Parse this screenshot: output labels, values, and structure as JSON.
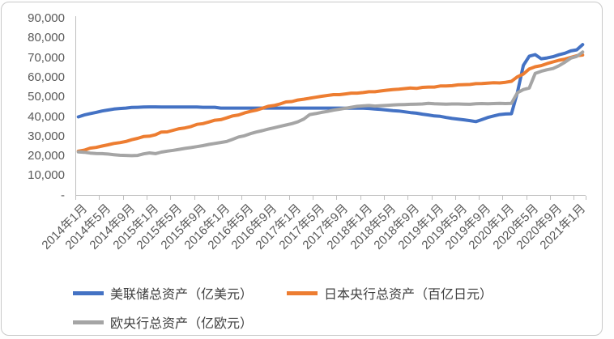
{
  "chart_data": {
    "type": "line",
    "title": "",
    "xlabel": "",
    "ylabel": "",
    "ylim": [
      0,
      90000
    ],
    "y_tick_step": 10000,
    "grid": false,
    "legend_position": "bottom",
    "x_unit": "month",
    "x_range_note": "monthly points from 2014-01 to 2021-02, x tick labels every 4 months",
    "y_tick_labels_top_to_bottom": [
      "90,000",
      "80,000",
      "70,000",
      "60,000",
      "50,000",
      "40,000",
      "30,000",
      "20,000",
      "10,000",
      "-"
    ],
    "x_tick_labels": [
      "2014年1月",
      "2014年5月",
      "2014年9月",
      "2015年1月",
      "2015年5月",
      "2015年9月",
      "2016年1月",
      "2016年5月",
      "2016年9月",
      "2017年1月",
      "2017年5月",
      "2017年9月",
      "2018年1月",
      "2018年5月",
      "2018年9月",
      "2019年1月",
      "2019年5月",
      "2019年9月",
      "2020年1月",
      "2020年5月",
      "2020年9月",
      "2021年1月"
    ],
    "series": [
      {
        "id": "fed",
        "name": "美联储总资产（亿美元）",
        "color": "#4472c4",
        "values": [
          40000,
          41000,
          41700,
          42300,
          43000,
          43500,
          44000,
          44300,
          44500,
          44800,
          44900,
          45000,
          45100,
          45100,
          45000,
          45000,
          45000,
          45000,
          45000,
          45000,
          45000,
          44900,
          44900,
          44900,
          44500,
          44500,
          44500,
          44500,
          44500,
          44500,
          44500,
          44500,
          44500,
          44500,
          44500,
          44500,
          44500,
          44500,
          44500,
          44500,
          44500,
          44500,
          44500,
          44500,
          44500,
          44400,
          44400,
          44400,
          44400,
          44300,
          44000,
          43800,
          43500,
          43200,
          43000,
          42600,
          42200,
          41900,
          41400,
          41000,
          40500,
          40300,
          39700,
          39200,
          38900,
          38500,
          38100,
          37600,
          38600,
          39700,
          40500,
          41200,
          41500,
          41600,
          52500,
          66200,
          70900,
          71700,
          69600,
          70000,
          70600,
          71600,
          72400,
          73600,
          74100,
          76800
        ]
      },
      {
        "id": "boj",
        "name": "日本央行总资产（百亿日元）",
        "color": "#ed7d31",
        "values": [
          22600,
          23100,
          24100,
          24500,
          25200,
          25800,
          26500,
          26900,
          27500,
          28400,
          29100,
          30000,
          30200,
          30900,
          32300,
          32400,
          33200,
          34000,
          34400,
          35100,
          36200,
          36600,
          37400,
          38300,
          38600,
          39500,
          40500,
          41000,
          42000,
          42800,
          43400,
          44400,
          45400,
          45800,
          46600,
          47600,
          47800,
          48600,
          49000,
          49500,
          50000,
          50500,
          50900,
          51300,
          51300,
          51700,
          52100,
          52100,
          52400,
          52800,
          52800,
          53200,
          53600,
          53900,
          54100,
          54400,
          54700,
          54500,
          55000,
          55200,
          55200,
          55700,
          55700,
          55900,
          56300,
          56400,
          56500,
          56900,
          57000,
          57200,
          57400,
          57300,
          57600,
          58100,
          60400,
          61800,
          64400,
          65500,
          66100,
          67100,
          68000,
          68800,
          69400,
          70300,
          71100,
          71500
        ]
      },
      {
        "id": "ecb",
        "name": "欧央行总资产（亿欧元）",
        "color": "#a5a5a5",
        "values": [
          22200,
          22000,
          21600,
          21400,
          21300,
          21100,
          20800,
          20500,
          20400,
          20300,
          20400,
          21200,
          21700,
          21300,
          22100,
          22600,
          23000,
          23500,
          24000,
          24400,
          24900,
          25400,
          26000,
          26500,
          27000,
          27500,
          28600,
          29800,
          30400,
          31500,
          32300,
          33000,
          33800,
          34500,
          35200,
          35900,
          36600,
          37500,
          38900,
          41200,
          41700,
          42300,
          42800,
          43400,
          43900,
          44400,
          44900,
          45400,
          45600,
          45800,
          45500,
          45700,
          45900,
          46100,
          46200,
          46300,
          46400,
          46500,
          46600,
          46900,
          46700,
          46600,
          46500,
          46600,
          46600,
          46500,
          46400,
          46700,
          46800,
          46700,
          46800,
          46900,
          46800,
          46900,
          52300,
          53900,
          54700,
          62100,
          63200,
          64000,
          64600,
          66000,
          67800,
          69900,
          70800,
          73000
        ]
      }
    ]
  }
}
